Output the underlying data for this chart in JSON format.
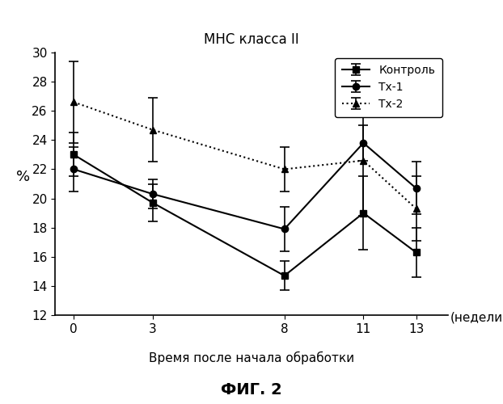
{
  "title": "МНС класса II",
  "xlabel": "Время после начала обработки",
  "xlabel_units": "(недели)",
  "ylabel": "%",
  "x": [
    0,
    3,
    8,
    11,
    13
  ],
  "kontrol_y": [
    23.0,
    19.7,
    14.7,
    19.0,
    16.3
  ],
  "kontrol_yerr": [
    1.5,
    1.3,
    1.0,
    2.5,
    1.7
  ],
  "tx1_y": [
    22.0,
    20.3,
    17.9,
    23.8,
    20.7
  ],
  "tx1_yerr": [
    1.5,
    1.0,
    1.5,
    1.2,
    1.8
  ],
  "tx2_y": [
    26.6,
    24.7,
    22.0,
    22.6,
    19.3
  ],
  "tx2_yerr": [
    2.8,
    2.2,
    1.5,
    3.8,
    2.2
  ],
  "ylim": [
    12,
    30
  ],
  "yticks": [
    12,
    14,
    16,
    18,
    20,
    22,
    24,
    26,
    28,
    30
  ],
  "legend_labels": [
    "Контроль",
    "Тх-1",
    "Тх-2"
  ],
  "bg_color": "#ffffff",
  "line_color": "#000000",
  "caption": "ФИГ. 2",
  "caption_fontsize": 14,
  "title_fontsize": 12,
  "tick_fontsize": 11,
  "label_fontsize": 11,
  "legend_fontsize": 10
}
